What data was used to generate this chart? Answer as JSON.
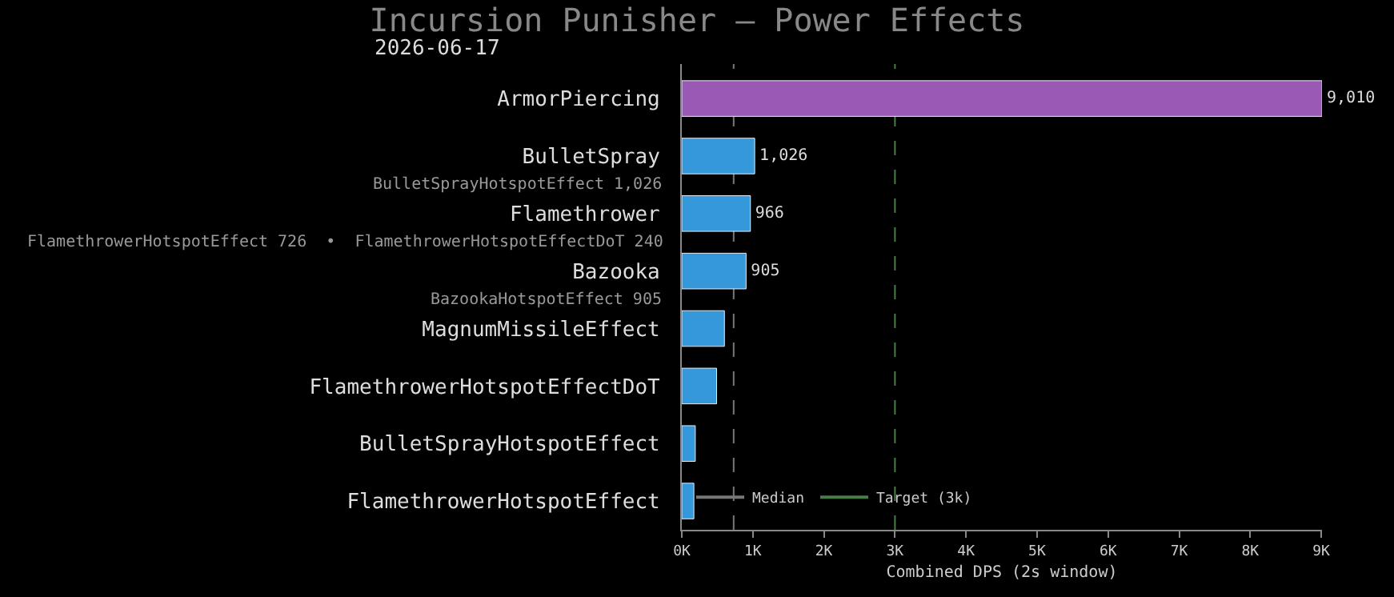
{
  "chart_data": {
    "type": "bar",
    "orientation": "horizontal",
    "title": "Incursion Punisher — Power Effects",
    "subtitle": "2026-06-17",
    "xlabel": "Combined DPS (2s window)",
    "categories": [
      "ArmorPiercing",
      "BulletSpray",
      "Flamethrower",
      "Bazooka",
      "MagnumMissileEffect",
      "FlamethrowerHotspotEffectDoT",
      "BulletSprayHotspotEffect",
      "FlamethrowerHotspotEffect"
    ],
    "values": [
      9010,
      1026,
      966,
      905,
      600,
      490,
      190,
      170
    ],
    "value_labels": [
      "9,010",
      "1,026",
      "966",
      "905",
      null,
      null,
      null,
      null
    ],
    "colors": [
      "#9b59b6",
      "#3498db",
      "#3498db",
      "#3498db",
      "#3498db",
      "#3498db",
      "#3498db",
      "#3498db"
    ],
    "annotations": [
      "BulletSprayHotspotEffect 1,026",
      "FlamethrowerHotspotEffect 726  •  FlamethrowerHotspotEffectDoT 240",
      "BazookaHotspotEffect 905"
    ],
    "xlim": [
      0,
      9010
    ],
    "xticks": [
      {
        "value": 0,
        "label": "0K"
      },
      {
        "value": 1000,
        "label": "1K"
      },
      {
        "value": 2000,
        "label": "2K"
      },
      {
        "value": 3000,
        "label": "3K"
      },
      {
        "value": 4000,
        "label": "4K"
      },
      {
        "value": 5000,
        "label": "5K"
      },
      {
        "value": 6000,
        "label": "6K"
      },
      {
        "value": 7000,
        "label": "7K"
      },
      {
        "value": 8000,
        "label": "8K"
      },
      {
        "value": 9000,
        "label": "9K"
      }
    ],
    "ref_lines": [
      {
        "axis": "x",
        "value": 730,
        "label": "Median",
        "color": "#777777",
        "line_style": "dashed"
      },
      {
        "axis": "x",
        "value": 3000,
        "label": "Target (3k)",
        "color": "#4a7c4a",
        "line_style": "dashed"
      }
    ],
    "grid": false,
    "legend": "bottom left"
  }
}
